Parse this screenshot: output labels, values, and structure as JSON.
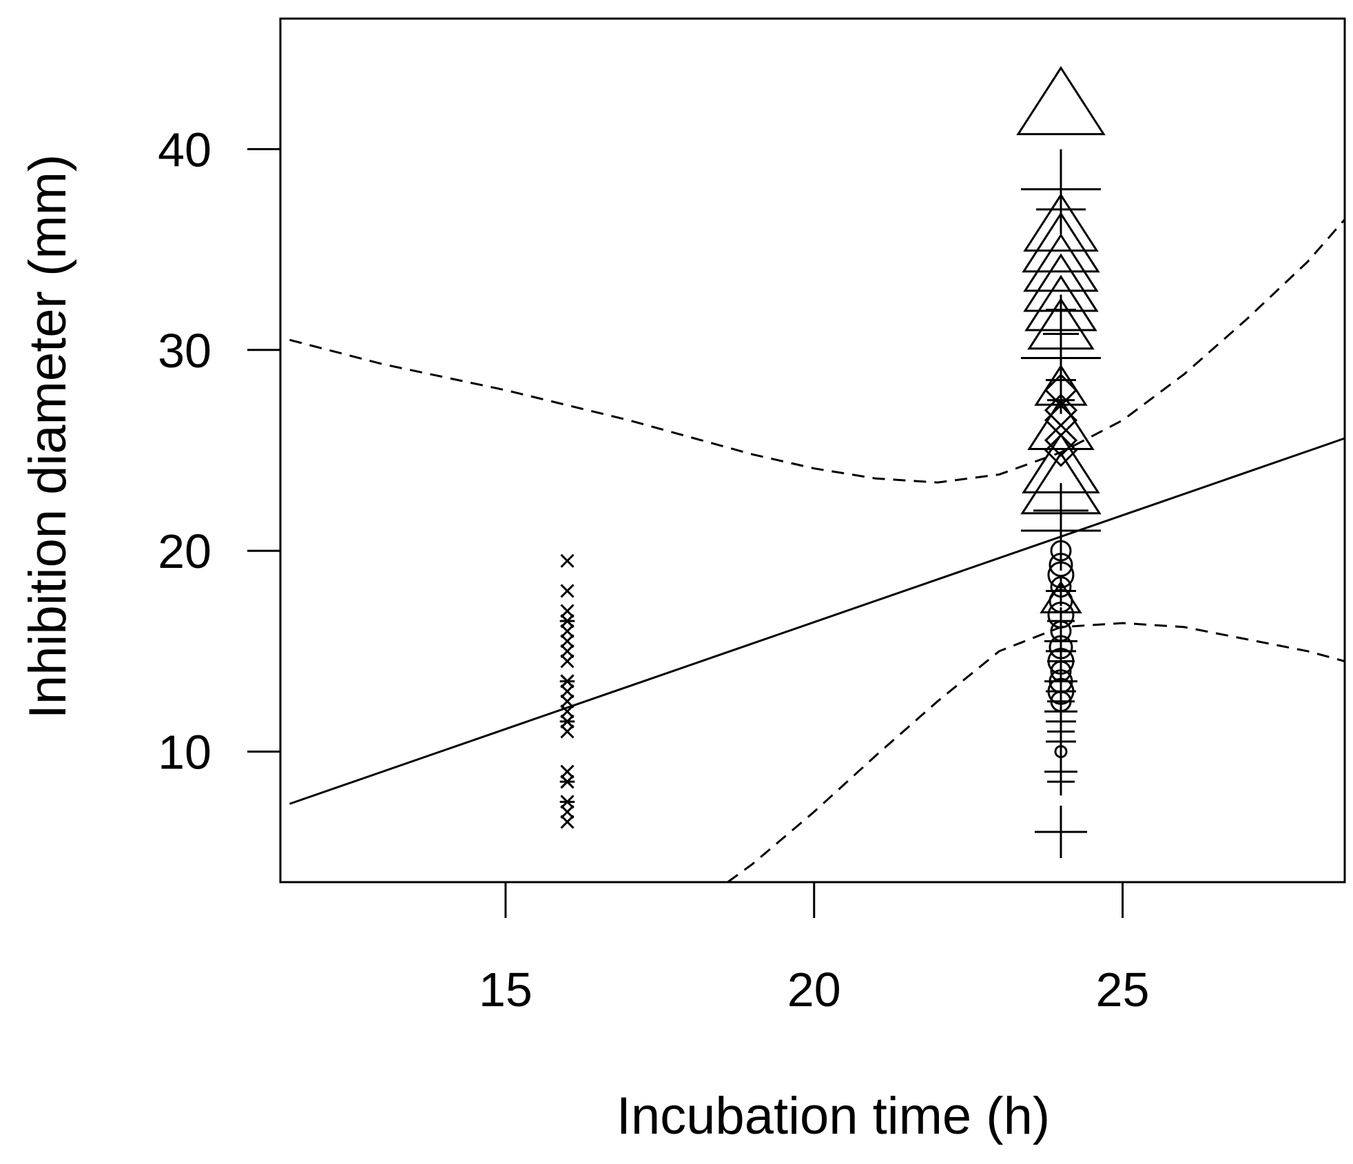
{
  "chart_data": {
    "type": "scatter",
    "title": "",
    "xlabel": "Incubation time (h)",
    "ylabel": "Inhibition diameter (mm)",
    "xlim": [
      11.35,
      28.6
    ],
    "ylim": [
      3.5,
      46.5
    ],
    "x_ticks": [
      15,
      20,
      25
    ],
    "y_ticks": [
      10,
      20,
      30,
      40
    ],
    "grid": false,
    "legend": "none",
    "series": [
      {
        "marker": "cross",
        "x": [
          16,
          16,
          16,
          16,
          16,
          16,
          16,
          16,
          16,
          16,
          16,
          16,
          16,
          16,
          16,
          16,
          16,
          16
        ],
        "y": [
          19.5,
          18.0,
          17.0,
          16.5,
          16.0,
          15.5,
          15.0,
          14.5,
          13.5,
          13.0,
          12.5,
          12.0,
          11.5,
          11.0,
          9.0,
          8.5,
          7.0,
          6.5
        ]
      },
      {
        "marker": "asterisk",
        "x": [
          16,
          16,
          16,
          16,
          16
        ],
        "y": [
          16.5,
          13.5,
          11.5,
          8.5,
          7.5
        ]
      },
      {
        "marker": "plus",
        "x": [
          24,
          24,
          24,
          24,
          24,
          24,
          24,
          24,
          24,
          24,
          24,
          24,
          24,
          24,
          24,
          24,
          24,
          24,
          24,
          24,
          24,
          24,
          24,
          24
        ],
        "y": [
          38.0,
          37.0,
          32.0,
          30.8,
          29.6,
          28.5,
          27.5,
          22.0,
          21.0,
          18.0,
          16.5,
          15.5,
          15.0,
          14.5,
          13.5,
          13.0,
          12.5,
          12.0,
          11.5,
          11.0,
          10.5,
          9.0,
          8.5,
          6.0
        ]
      },
      {
        "marker": "triangle",
        "x": [
          24,
          24,
          24,
          24,
          24,
          24,
          24,
          24,
          24,
          24,
          24,
          24
        ],
        "y": [
          42.0,
          36.0,
          35.0,
          34.0,
          33.0,
          32.0,
          31.0,
          28.0,
          26.0,
          24.0,
          23.0,
          17.5
        ]
      },
      {
        "marker": "diamond",
        "x": [
          24,
          24,
          24,
          24,
          24
        ],
        "y": [
          28.0,
          27.0,
          26.5,
          25.5,
          25.0
        ]
      },
      {
        "marker": "circle",
        "x": [
          24,
          24,
          24,
          24,
          24,
          24,
          24,
          24,
          24,
          24,
          24,
          24,
          24,
          24
        ],
        "y": [
          20.0,
          19.3,
          18.8,
          18.2,
          17.5,
          16.8,
          16.0,
          15.2,
          14.5,
          14.0,
          13.5,
          13.0,
          12.5,
          10.0
        ]
      }
    ],
    "fit_line": {
      "x": [
        11.5,
        28.6
      ],
      "y": [
        7.4,
        25.6
      ]
    },
    "ci_upper": {
      "x": [
        11.5,
        13,
        15,
        17,
        19,
        20,
        21,
        22,
        23,
        24,
        25,
        26,
        27,
        28,
        28.6
      ],
      "y": [
        30.5,
        29.3,
        28.0,
        26.5,
        24.8,
        24.1,
        23.6,
        23.4,
        23.8,
        24.9,
        26.5,
        28.8,
        31.5,
        34.4,
        36.5
      ]
    },
    "ci_lower": {
      "x": [
        18.6,
        19,
        20,
        21,
        22,
        23,
        24,
        25,
        26,
        27,
        28,
        28.6
      ],
      "y": [
        3.5,
        4.4,
        7.0,
        9.8,
        12.5,
        15.0,
        16.2,
        16.4,
        16.2,
        15.6,
        15.0,
        14.5
      ]
    }
  }
}
